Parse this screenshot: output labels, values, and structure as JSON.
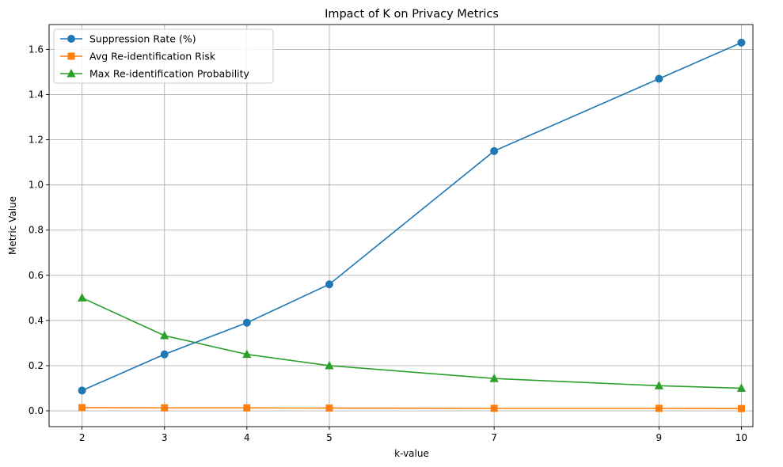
{
  "chart_data": {
    "type": "line",
    "title": "Impact of K on Privacy Metrics",
    "xlabel": "k-value",
    "ylabel": "Metric Value",
    "x": [
      2,
      3,
      4,
      5,
      7,
      9,
      10
    ],
    "xticks": [
      "2",
      "3",
      "4",
      "5",
      "7",
      "9",
      "10"
    ],
    "xlim": [
      1.6,
      10.14
    ],
    "ylim": [
      -0.07,
      1.71
    ],
    "yticks": [
      "0.0",
      "0.2",
      "0.4",
      "0.6",
      "0.8",
      "1.0",
      "1.2",
      "1.4",
      "1.6"
    ],
    "grid": true,
    "legend_position": "top-left",
    "series": [
      {
        "name": "Suppression Rate (%)",
        "color": "#1f77b4",
        "marker": "circle",
        "values": [
          0.09,
          0.25,
          0.39,
          0.56,
          1.15,
          1.47,
          1.63
        ]
      },
      {
        "name": "Avg Re-identification Risk",
        "color": "#ff7f0e",
        "marker": "square",
        "values": [
          0.014,
          0.013,
          0.013,
          0.012,
          0.011,
          0.011,
          0.01
        ]
      },
      {
        "name": "Max Re-identification Probability",
        "color": "#2ca02c",
        "marker": "triangle",
        "values": [
          0.5,
          0.333,
          0.25,
          0.2,
          0.143,
          0.111,
          0.1
        ]
      }
    ]
  }
}
